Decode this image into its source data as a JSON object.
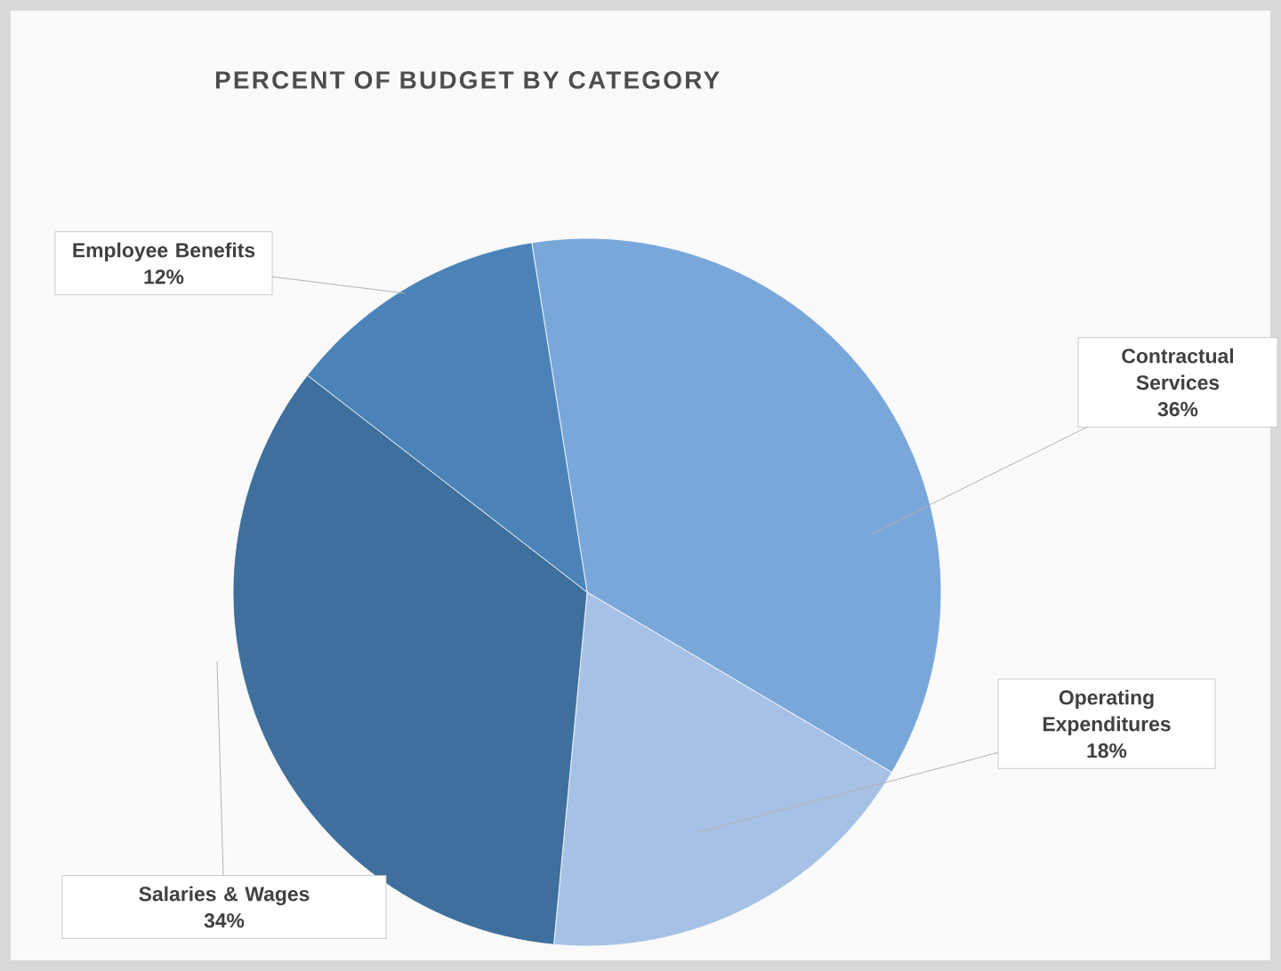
{
  "chart_data": {
    "type": "pie",
    "title": "PERCENT OF BUDGET BY CATEGORY",
    "categories": [
      "Contractual Services",
      "Operating Expenditures",
      "Salaries & Wages",
      "Employee Benefits"
    ],
    "values": [
      36,
      18,
      34,
      12
    ],
    "colors": [
      "#7aa7d9",
      "#a6c1e5",
      "#3f6f9d",
      "#4b83b9"
    ],
    "value_labels": [
      "36%",
      "18%",
      "34%",
      "12%"
    ]
  }
}
